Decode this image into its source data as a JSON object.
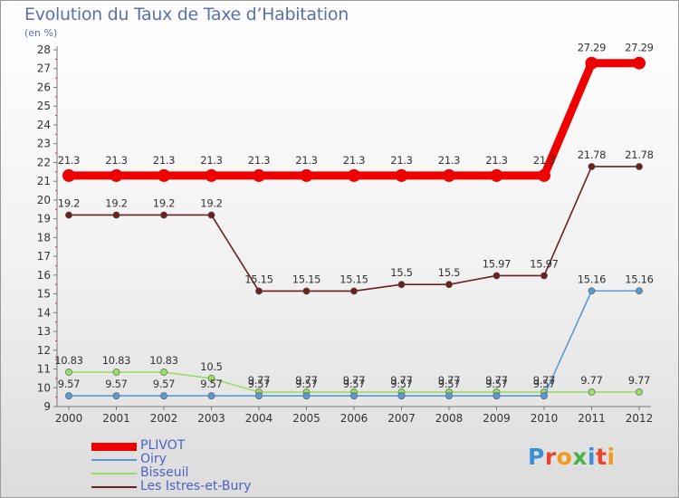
{
  "chart_data": {
    "type": "line",
    "title": "Evolution du Taux de Taxe d’Habitation",
    "subtitle": "(en %)",
    "categories": [
      "2000",
      "2001",
      "2002",
      "2003",
      "2004",
      "2005",
      "2006",
      "2007",
      "2008",
      "2009",
      "2010",
      "2011",
      "2012"
    ],
    "ylim": [
      9,
      28
    ],
    "yticks": [
      9,
      10,
      11,
      12,
      13,
      14,
      15,
      16,
      17,
      18,
      19,
      20,
      21,
      22,
      23,
      24,
      25,
      26,
      27,
      28
    ],
    "grid": false,
    "legend_position": "bottom-left",
    "series": [
      {
        "name": "PLIVOT",
        "color": "#ee0000",
        "values": [
          21.3,
          21.3,
          21.3,
          21.3,
          21.3,
          21.3,
          21.3,
          21.3,
          21.3,
          21.3,
          21.3,
          27.29,
          27.29
        ],
        "labels": [
          "21.3",
          "21.3",
          "21.3",
          "21.3",
          "21.3",
          "21.3",
          "21.3",
          "21.3",
          "21.3",
          "21.3",
          "21.3",
          "27.29",
          "27.29"
        ]
      },
      {
        "name": "Oiry",
        "color": "#5a9ad0",
        "values": [
          9.57,
          9.57,
          9.57,
          9.57,
          9.57,
          9.57,
          9.57,
          9.57,
          9.57,
          9.57,
          9.57,
          15.16,
          15.16
        ],
        "labels": [
          "9.57",
          "9.57",
          "9.57",
          "9.57",
          "9.57",
          "9.57",
          "9.57",
          "9.57",
          "9.57",
          "9.57",
          "9.57",
          "15.16",
          "15.16"
        ]
      },
      {
        "name": "Bisseuil",
        "color": "#99dd66",
        "values": [
          10.83,
          10.83,
          10.83,
          10.5,
          9.77,
          9.77,
          9.77,
          9.77,
          9.77,
          9.77,
          9.77,
          9.77,
          9.77
        ],
        "labels": [
          "10.83",
          "10.83",
          "10.83",
          "10.5",
          "9.77",
          "9.77",
          "9.77",
          "9.77",
          "9.77",
          "9.77",
          "9.77",
          "9.77",
          "9.77"
        ]
      },
      {
        "name": "Les Istres-et-Bury",
        "color": "#6b2020",
        "values": [
          19.2,
          19.2,
          19.2,
          19.2,
          15.15,
          15.15,
          15.15,
          15.5,
          15.5,
          15.97,
          15.97,
          21.78,
          21.78
        ],
        "labels": [
          "19.2",
          "19.2",
          "19.2",
          "19.2",
          "15.15",
          "15.15",
          "15.15",
          "15.5",
          "15.5",
          "15.97",
          "15.97",
          "21.78",
          "21.78"
        ]
      }
    ]
  },
  "branding": {
    "logo": "Proxiti",
    "letter_colors": [
      "#3a8fd6",
      "#e8452c",
      "#f29a1b",
      "#4bb04b",
      "#3a8fd6",
      "#e8452c",
      "#f29a1b"
    ]
  }
}
